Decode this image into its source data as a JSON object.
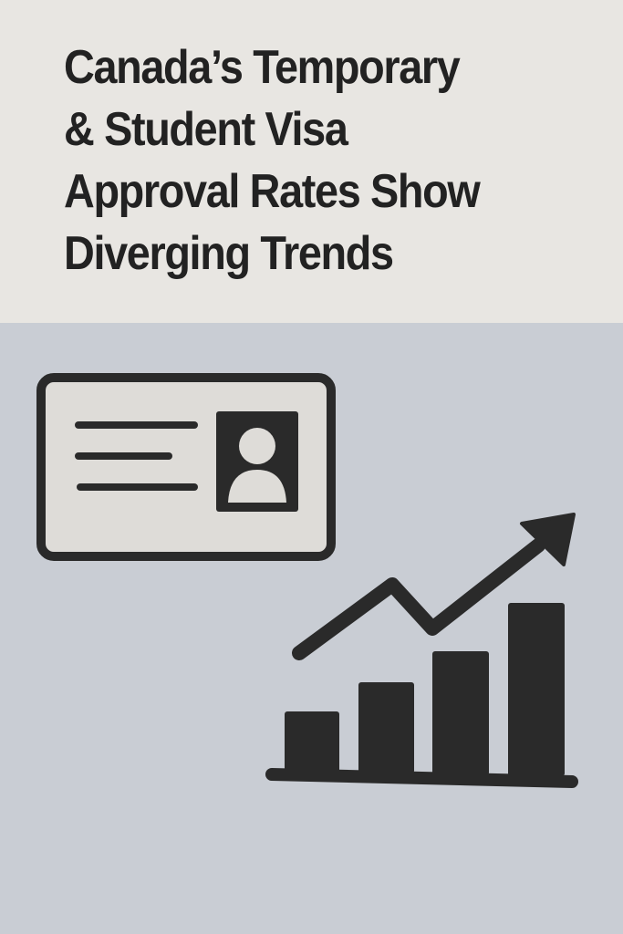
{
  "headline": {
    "lines": [
      "Canada’s Temporary",
      "& Student Visa",
      "Approval Rates Show",
      "Diverging Trends"
    ]
  },
  "illustration": {
    "icons": [
      "id-card-icon",
      "bar-chart-trend-up-icon"
    ],
    "colors": {
      "ink": "#2a2a2a",
      "top_bg": "#e8e6e2",
      "bottom_bg": "#c9cdd4",
      "card_fill": "#dedcd8"
    }
  }
}
